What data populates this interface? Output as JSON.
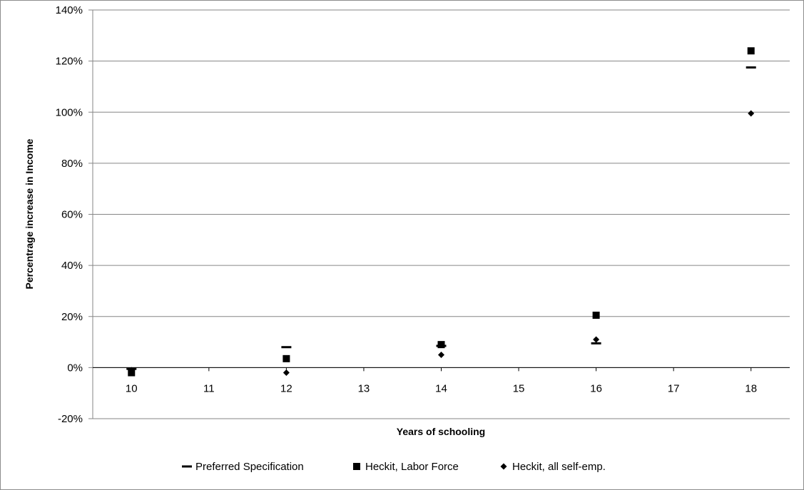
{
  "chart_data": {
    "type": "scatter",
    "xlabel": "Years of schooling",
    "ylabel": "Percentrage increase in Income",
    "x_ticks": [
      "10",
      "11",
      "12",
      "13",
      "14",
      "15",
      "16",
      "17",
      "18"
    ],
    "y_ticks": [
      "-20%",
      "0%",
      "20%",
      "40%",
      "60%",
      "80%",
      "100%",
      "120%",
      "140%"
    ],
    "xlim": [
      9.5,
      18.5
    ],
    "ylim": [
      -20,
      140
    ],
    "grid": "horizontal",
    "legend_position": "bottom",
    "x": [
      10,
      12,
      14,
      16,
      18
    ],
    "series": [
      {
        "name": "Preferred Specification",
        "marker": "dash",
        "values": [
          -0.5,
          8,
          8.5,
          9.5,
          117.5
        ]
      },
      {
        "name": "Heckit, Labor Force",
        "marker": "square",
        "values": [
          -2,
          3.5,
          9,
          20.5,
          124
        ]
      },
      {
        "name": "Heckit, all self-emp.",
        "marker": "diamond",
        "values": [
          -1,
          -2,
          5,
          11,
          99.5
        ]
      }
    ],
    "colors": {
      "marker": "#000000",
      "grid": "#868686",
      "frame": "#8c8c8c"
    }
  }
}
